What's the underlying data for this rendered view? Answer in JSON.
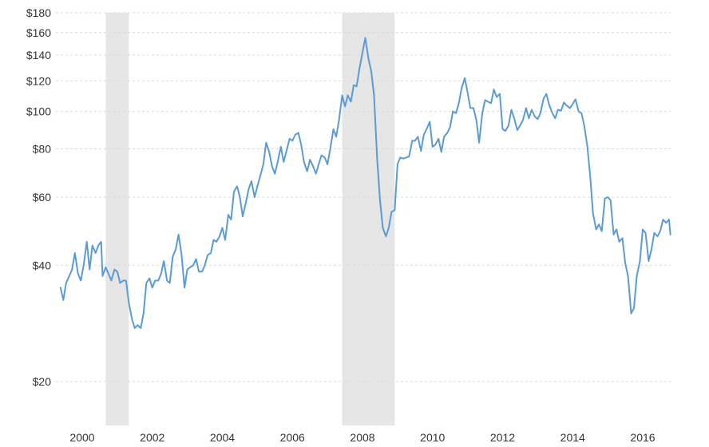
{
  "chart_data": {
    "type": "line",
    "title": "",
    "xlabel": "",
    "ylabel": "",
    "y_scale": "log",
    "ylim": [
      10,
      180
    ],
    "xlim": [
      1999.38,
      2016.75
    ],
    "grid": {
      "horizontal": true,
      "vertical": false
    },
    "y_ticks": [
      {
        "value": 20,
        "label": "$20"
      },
      {
        "value": 40,
        "label": "$40"
      },
      {
        "value": 60,
        "label": "$60"
      },
      {
        "value": 80,
        "label": "$80"
      },
      {
        "value": 100,
        "label": "$100"
      },
      {
        "value": 120,
        "label": "$120"
      },
      {
        "value": 140,
        "label": "$140"
      },
      {
        "value": 160,
        "label": "$160"
      },
      {
        "value": 180,
        "label": "$180"
      }
    ],
    "x_ticks": [
      {
        "value": 2000,
        "label": "2000"
      },
      {
        "value": 2002,
        "label": "2002"
      },
      {
        "value": 2004,
        "label": "2004"
      },
      {
        "value": 2006,
        "label": "2006"
      },
      {
        "value": 2008,
        "label": "2008"
      },
      {
        "value": 2010,
        "label": "2010"
      },
      {
        "value": 2012,
        "label": "2012"
      },
      {
        "value": 2014,
        "label": "2014"
      },
      {
        "value": 2016,
        "label": "2016"
      }
    ],
    "shaded_regions": [
      {
        "start": 2000.67,
        "end": 2001.33
      },
      {
        "start": 2007.42,
        "end": 2008.92
      }
    ],
    "series": [
      {
        "color": "#5b9bd5",
        "points": [
          [
            1999.38,
            35.0
          ],
          [
            1999.46,
            32.5
          ],
          [
            1999.54,
            36.0
          ],
          [
            1999.63,
            37.5
          ],
          [
            1999.71,
            39.0
          ],
          [
            1999.79,
            43.0
          ],
          [
            1999.88,
            38.0
          ],
          [
            1999.96,
            36.5
          ],
          [
            2000.04,
            40.0
          ],
          [
            2000.13,
            46.0
          ],
          [
            2000.21,
            39.0
          ],
          [
            2000.29,
            45.0
          ],
          [
            2000.38,
            43.0
          ],
          [
            2000.46,
            45.0
          ],
          [
            2000.54,
            46.0
          ],
          [
            2000.58,
            37.5
          ],
          [
            2000.67,
            39.5
          ],
          [
            2000.75,
            38.0
          ],
          [
            2000.83,
            36.5
          ],
          [
            2000.92,
            39.0
          ],
          [
            2001.0,
            38.5
          ],
          [
            2001.08,
            36.0
          ],
          [
            2001.17,
            36.5
          ],
          [
            2001.25,
            36.5
          ],
          [
            2001.33,
            32.0
          ],
          [
            2001.42,
            29.0
          ],
          [
            2001.5,
            27.5
          ],
          [
            2001.58,
            28.0
          ],
          [
            2001.67,
            27.5
          ],
          [
            2001.75,
            30.0
          ],
          [
            2001.83,
            36.0
          ],
          [
            2001.92,
            37.0
          ],
          [
            2002.0,
            35.0
          ],
          [
            2002.08,
            36.5
          ],
          [
            2002.17,
            36.5
          ],
          [
            2002.25,
            38.0
          ],
          [
            2002.33,
            41.0
          ],
          [
            2002.42,
            36.5
          ],
          [
            2002.5,
            36.0
          ],
          [
            2002.58,
            42.0
          ],
          [
            2002.67,
            44.0
          ],
          [
            2002.75,
            48.0
          ],
          [
            2002.83,
            43.0
          ],
          [
            2002.92,
            35.0
          ],
          [
            2003.0,
            39.0
          ],
          [
            2003.08,
            39.5
          ],
          [
            2003.17,
            40.0
          ],
          [
            2003.25,
            41.5
          ],
          [
            2003.33,
            38.5
          ],
          [
            2003.42,
            38.5
          ],
          [
            2003.5,
            40.0
          ],
          [
            2003.58,
            42.5
          ],
          [
            2003.67,
            43.0
          ],
          [
            2003.75,
            46.5
          ],
          [
            2003.83,
            46.0
          ],
          [
            2003.92,
            47.5
          ],
          [
            2004.0,
            50.0
          ],
          [
            2004.08,
            46.5
          ],
          [
            2004.17,
            54.0
          ],
          [
            2004.25,
            52.5
          ],
          [
            2004.33,
            62.0
          ],
          [
            2004.42,
            64.0
          ],
          [
            2004.5,
            60.0
          ],
          [
            2004.58,
            53.5
          ],
          [
            2004.67,
            58.0
          ],
          [
            2004.75,
            63.0
          ],
          [
            2004.83,
            66.0
          ],
          [
            2004.92,
            60.0
          ],
          [
            2005.0,
            64.0
          ],
          [
            2005.08,
            68.0
          ],
          [
            2005.17,
            73.0
          ],
          [
            2005.25,
            83.0
          ],
          [
            2005.33,
            79.0
          ],
          [
            2005.42,
            72.0
          ],
          [
            2005.5,
            69.0
          ],
          [
            2005.58,
            74.0
          ],
          [
            2005.67,
            81.0
          ],
          [
            2005.75,
            74.0
          ],
          [
            2005.83,
            79.0
          ],
          [
            2005.92,
            85.0
          ],
          [
            2006.0,
            84.0
          ],
          [
            2006.08,
            87.0
          ],
          [
            2006.17,
            88.0
          ],
          [
            2006.25,
            82.0
          ],
          [
            2006.33,
            74.0
          ],
          [
            2006.42,
            70.0
          ],
          [
            2006.5,
            75.0
          ],
          [
            2006.58,
            72.5
          ],
          [
            2006.67,
            69.0
          ],
          [
            2006.75,
            73.0
          ],
          [
            2006.83,
            77.0
          ],
          [
            2006.92,
            76.0
          ],
          [
            2007.0,
            73.0
          ],
          [
            2007.08,
            80.0
          ],
          [
            2007.17,
            90.0
          ],
          [
            2007.25,
            86.0
          ],
          [
            2007.33,
            95.0
          ],
          [
            2007.42,
            110.0
          ],
          [
            2007.5,
            103.0
          ],
          [
            2007.58,
            110.0
          ],
          [
            2007.67,
            106.0
          ],
          [
            2007.75,
            117.0
          ],
          [
            2007.83,
            116.0
          ],
          [
            2007.92,
            130.0
          ],
          [
            2008.0,
            142.0
          ],
          [
            2008.08,
            155.0
          ],
          [
            2008.17,
            137.0
          ],
          [
            2008.25,
            127.0
          ],
          [
            2008.33,
            110.0
          ],
          [
            2008.42,
            75.0
          ],
          [
            2008.5,
            59.0
          ],
          [
            2008.58,
            50.0
          ],
          [
            2008.67,
            47.5
          ],
          [
            2008.75,
            50.0
          ],
          [
            2008.83,
            55.0
          ],
          [
            2008.92,
            55.5
          ],
          [
            2009.0,
            73.0
          ],
          [
            2009.08,
            76.0
          ],
          [
            2009.17,
            75.5
          ],
          [
            2009.25,
            76.0
          ],
          [
            2009.33,
            76.5
          ],
          [
            2009.42,
            84.0
          ],
          [
            2009.5,
            84.0
          ],
          [
            2009.58,
            86.0
          ],
          [
            2009.67,
            79.0
          ],
          [
            2009.75,
            87.0
          ],
          [
            2009.83,
            90.0
          ],
          [
            2009.92,
            94.0
          ],
          [
            2010.0,
            81.0
          ],
          [
            2010.08,
            82.0
          ],
          [
            2010.17,
            85.0
          ],
          [
            2010.25,
            78.5
          ],
          [
            2010.33,
            86.0
          ],
          [
            2010.42,
            88.0
          ],
          [
            2010.5,
            91.0
          ],
          [
            2010.58,
            100.0
          ],
          [
            2010.67,
            99.0
          ],
          [
            2010.75,
            105.0
          ],
          [
            2010.83,
            115.0
          ],
          [
            2010.92,
            122.0
          ],
          [
            2011.0,
            112.0
          ],
          [
            2011.08,
            102.0
          ],
          [
            2011.17,
            102.0
          ],
          [
            2011.25,
            95.0
          ],
          [
            2011.33,
            83.0
          ],
          [
            2011.42,
            99.0
          ],
          [
            2011.5,
            107.0
          ],
          [
            2011.58,
            106.0
          ],
          [
            2011.67,
            105.0
          ],
          [
            2011.75,
            114.0
          ],
          [
            2011.83,
            109.0
          ],
          [
            2011.92,
            111.0
          ],
          [
            2012.0,
            90.0
          ],
          [
            2012.08,
            89.0
          ],
          [
            2012.17,
            92.0
          ],
          [
            2012.25,
            101.0
          ],
          [
            2012.33,
            96.0
          ],
          [
            2012.42,
            89.5
          ],
          [
            2012.5,
            92.0
          ],
          [
            2012.58,
            95.0
          ],
          [
            2012.67,
            102.0
          ],
          [
            2012.75,
            96.0
          ],
          [
            2012.83,
            101.0
          ],
          [
            2012.92,
            97.0
          ],
          [
            2013.0,
            95.5
          ],
          [
            2013.08,
            99.0
          ],
          [
            2013.17,
            108.0
          ],
          [
            2013.25,
            111.0
          ],
          [
            2013.33,
            104.0
          ],
          [
            2013.42,
            99.0
          ],
          [
            2013.5,
            96.0
          ],
          [
            2013.58,
            101.0
          ],
          [
            2013.67,
            100.5
          ],
          [
            2013.75,
            105.5
          ],
          [
            2013.83,
            103.5
          ],
          [
            2013.92,
            102.0
          ],
          [
            2014.0,
            104.5
          ],
          [
            2014.08,
            107.5
          ],
          [
            2014.17,
            100.0
          ],
          [
            2014.25,
            99.0
          ],
          [
            2014.33,
            92.0
          ],
          [
            2014.42,
            81.0
          ],
          [
            2014.5,
            68.0
          ],
          [
            2014.58,
            54.5
          ],
          [
            2014.67,
            49.5
          ],
          [
            2014.75,
            51.0
          ],
          [
            2014.83,
            49.0
          ],
          [
            2014.92,
            59.5
          ],
          [
            2015.0,
            60.0
          ],
          [
            2015.08,
            59.0
          ],
          [
            2015.17,
            48.0
          ],
          [
            2015.25,
            49.5
          ],
          [
            2015.33,
            46.0
          ],
          [
            2015.42,
            47.0
          ],
          [
            2015.5,
            40.5
          ],
          [
            2015.58,
            37.5
          ],
          [
            2015.67,
            30.0
          ],
          [
            2015.75,
            31.0
          ],
          [
            2015.83,
            37.5
          ],
          [
            2015.92,
            41.0
          ],
          [
            2016.0,
            49.5
          ],
          [
            2016.08,
            48.5
          ],
          [
            2016.17,
            41.0
          ],
          [
            2016.25,
            44.0
          ],
          [
            2016.33,
            48.5
          ],
          [
            2016.42,
            47.5
          ],
          [
            2016.5,
            49.0
          ],
          [
            2016.58,
            52.5
          ],
          [
            2016.67,
            51.5
          ],
          [
            2016.75,
            52.5
          ],
          [
            2016.79,
            48.0
          ]
        ]
      }
    ]
  }
}
